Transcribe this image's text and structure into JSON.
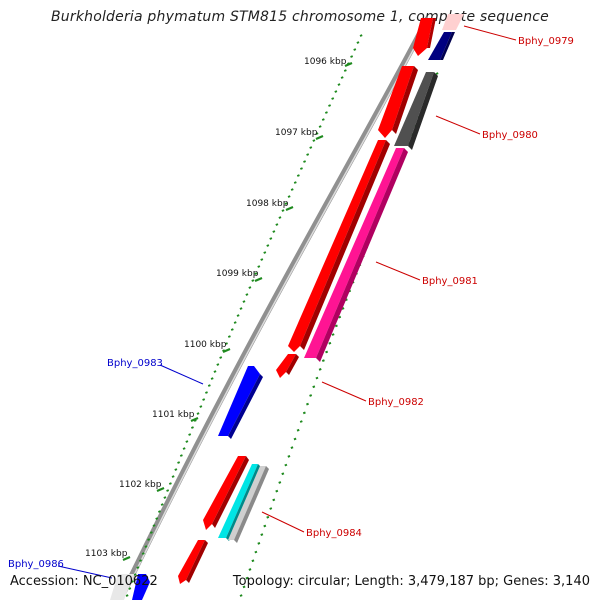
{
  "title": "Burkholderia phymatum STM815 chromosome 1, complete sequence",
  "accession": "Accession: NC_010622",
  "summary": "Topology: circular; Length: 3,479,187 bp; Genes: 3,140",
  "colors": {
    "backbone": "#808080",
    "tick": "#1f8a1f",
    "forward_gene": "#ff0000",
    "reverse_gene_blue": "#0000ff",
    "reverse_gene_navy": "#000080",
    "pink_gene": "#ff1493",
    "grey_gene": "#505050",
    "cyan_gene": "#00e5e5",
    "light_grey_gene": "#c8c8c8",
    "label_red": "#cc0000",
    "label_blue": "#0000cc"
  },
  "kbp_ticks": [
    "1096 kbp",
    "1097 kbp",
    "1098 kbp",
    "1099 kbp",
    "1100 kbp",
    "1101 kbp",
    "1102 kbp",
    "1103 kbp"
  ],
  "gene_labels": [
    {
      "name": "Bphy_0979",
      "color": "red"
    },
    {
      "name": "Bphy_0980",
      "color": "red"
    },
    {
      "name": "Bphy_0981",
      "color": "red"
    },
    {
      "name": "Bphy_0982",
      "color": "red"
    },
    {
      "name": "Bphy_0983",
      "color": "blue"
    },
    {
      "name": "Bphy_0984",
      "color": "red"
    },
    {
      "name": "Bphy_0986",
      "color": "blue"
    }
  ]
}
